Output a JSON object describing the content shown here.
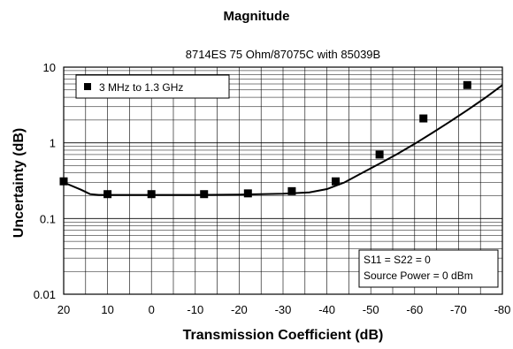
{
  "chart_data": {
    "type": "line",
    "title": "Magnitude",
    "subtitle": "8714ES 75 Ohm/87075C with 85039B",
    "xlabel": "Transmission Coefficient (dB)",
    "ylabel": "Uncertainty (dB)",
    "xlim": [
      20,
      -80
    ],
    "ylim": [
      0.01,
      10
    ],
    "y_scale": "log",
    "grid": true,
    "x_ticks": [
      "20",
      "10",
      "0",
      "-10",
      "-20",
      "-30",
      "-40",
      "-50",
      "-60",
      "-70",
      "-80"
    ],
    "y_ticks": [
      "10",
      "1",
      "0.1",
      "0.01"
    ],
    "legend_position": "top-left",
    "series": [
      {
        "name": "3 MHz to 1.3 GHz",
        "x": [
          20,
          10,
          0,
          -10,
          -20,
          -30,
          -40,
          -50,
          -60,
          -70,
          -80
        ],
        "y": [
          0.32,
          0.21,
          0.21,
          0.21,
          0.22,
          0.23,
          0.32,
          0.7,
          2.1,
          5.8,
          5.8
        ],
        "curve_x": [
          20,
          16,
          14,
          12,
          10,
          0,
          -10,
          -20,
          -30,
          -36,
          -40,
          -44,
          -48,
          -52,
          -56,
          -60,
          -64,
          -68,
          -72,
          -76,
          -80
        ],
        "curve_y": [
          0.3,
          0.24,
          0.21,
          0.205,
          0.205,
          0.205,
          0.205,
          0.207,
          0.213,
          0.222,
          0.245,
          0.3,
          0.4,
          0.53,
          0.71,
          0.97,
          1.35,
          1.9,
          2.7,
          3.9,
          5.8
        ],
        "markers": [
          {
            "x": 20,
            "y": 0.31
          },
          {
            "x": 10,
            "y": 0.21
          },
          {
            "x": 0,
            "y": 0.21
          },
          {
            "x": -12,
            "y": 0.21
          },
          {
            "x": -22,
            "y": 0.215
          },
          {
            "x": -32,
            "y": 0.23
          },
          {
            "x": -42,
            "y": 0.31
          },
          {
            "x": -52,
            "y": 0.7
          },
          {
            "x": -62,
            "y": 2.1
          },
          {
            "x": -72,
            "y": 5.8
          }
        ],
        "color": "#000000"
      }
    ],
    "annotation": [
      "S11 = S22 = 0",
      "Source Power = 0 dBm"
    ]
  }
}
